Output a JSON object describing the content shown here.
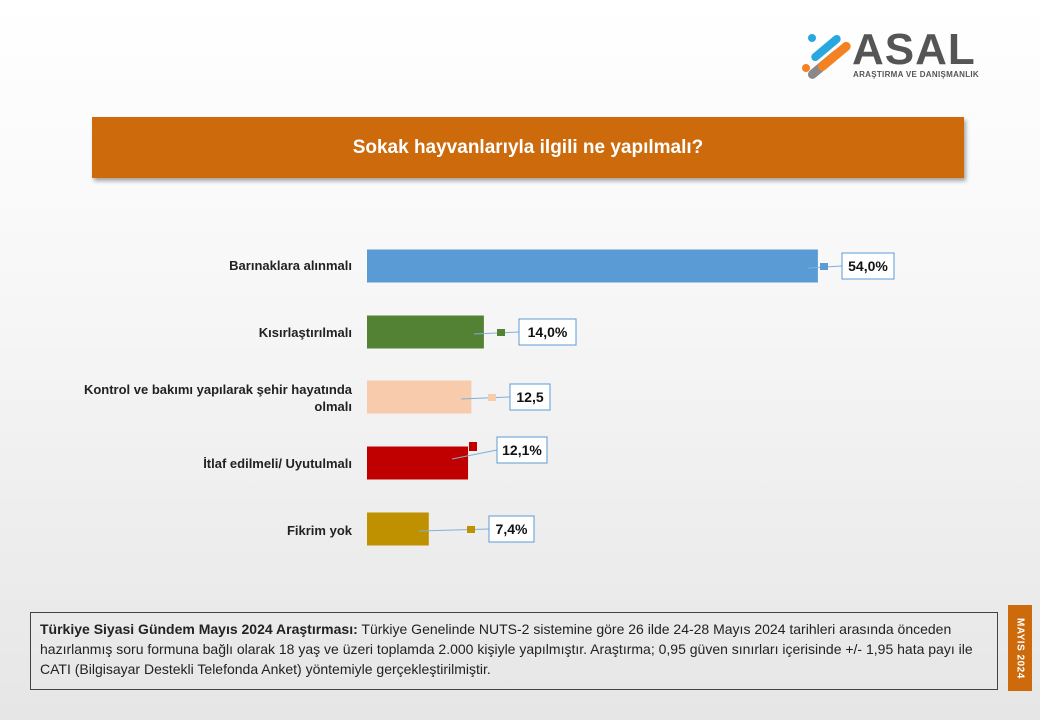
{
  "logo": {
    "name": "ASAL",
    "subtitle": "ARAŞTIRMA VE DANIŞMANLIK"
  },
  "chart_data": {
    "type": "bar",
    "orientation": "horizontal",
    "title": "Sokak hayvanlarıyla ilgili ne yapılmalı?",
    "categories": [
      "Barınaklara alınmalı",
      "Kısırlaştırılmalı",
      "Kontrol ve bakımı yapılarak şehir hayatında olmalı",
      "İtlaf edilmeli/ Uyutulmalı",
      "Fikrim yok"
    ],
    "values": [
      54.0,
      14.0,
      12.5,
      12.1,
      7.4
    ],
    "data_labels": [
      "54,0%",
      "14,0%",
      "12,5",
      "12,1%",
      "7,4%"
    ],
    "colors": [
      "#5b9bd5",
      "#548235",
      "#f8cbad",
      "#c00000",
      "#bf9000"
    ],
    "xlim": [
      0,
      60
    ],
    "grid": false,
    "legend": "none"
  },
  "note": {
    "bold": "Türkiye Siyasi Gündem Mayıs 2024 Araştırması:",
    "text": " Türkiye Genelinde NUTS-2 sistemine göre 26 ilde 24-28 Mayıs 2024 tarihleri arasında önceden hazırlanmış soru formuna bağlı olarak 18 yaş ve üzeri toplamda 2.000 kişiyle yapılmıştır. Araştırma; 0,95 güven sınırları içerisinde +/- 1,95 hata payı ile CATI (Bilgisayar Destekli Telefonda Anket) yöntemiyle gerçekleştirilmiştir."
  },
  "side_tab": "MAYIS 2024"
}
